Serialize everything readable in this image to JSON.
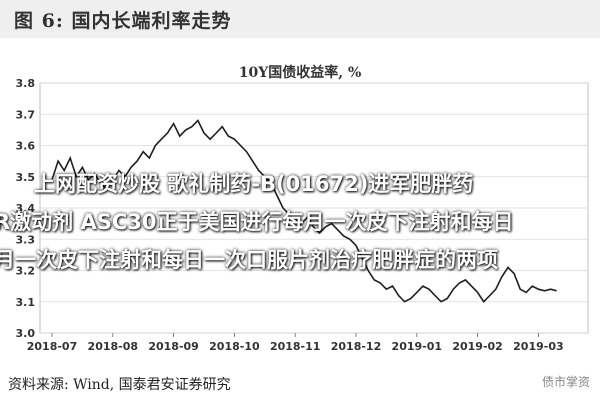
{
  "figure_title": "图 6:  国内长端利率走势",
  "overlay_text": {
    "line1": "上网配资炒股 歌礼制药-B(01672)进军肥胖药",
    "line2": "R激动剂 ASC30正于美国进行每月一次皮下注射和每日",
    "line3": "月一次皮下注射和每日一次口服片剂治疗肥胖症的两项"
  },
  "source_text": "资料来源:  Wind, 国泰君安证券研究",
  "watermark": "债市掌资",
  "chart_data": {
    "type": "line",
    "title": "10Y国债收益率,  %",
    "xlabel": "",
    "ylabel": "",
    "x_ticks": [
      "2018-07",
      "2018-08",
      "2018-09",
      "2018-10",
      "2018-11",
      "2018-12",
      "2019-01",
      "2019-02",
      "2019-03"
    ],
    "y_ticks": [
      "3.0",
      "3.1",
      "3.2",
      "3.3",
      "3.4",
      "3.5",
      "3.6",
      "3.7",
      "3.8"
    ],
    "ylim": [
      3.0,
      3.8
    ],
    "grid": "horizontal",
    "line_color": "#1f1f1f",
    "series": [
      {
        "name": "",
        "x": [
          0,
          0.1,
          0.2,
          0.3,
          0.4,
          0.5,
          0.6,
          0.7,
          0.8,
          0.9,
          1.0,
          1.1,
          1.2,
          1.3,
          1.4,
          1.5,
          1.6,
          1.7,
          1.8,
          1.9,
          2.0,
          2.1,
          2.2,
          2.3,
          2.4,
          2.5,
          2.6,
          2.7,
          2.8,
          2.9,
          3.0,
          3.1,
          3.2,
          3.3,
          3.4,
          3.5,
          3.6,
          3.7,
          3.8,
          3.9,
          4.0,
          4.1,
          4.2,
          4.3,
          4.4,
          4.5,
          4.6,
          4.7,
          4.8,
          4.9,
          5.0,
          5.1,
          5.2,
          5.3,
          5.4,
          5.5,
          5.6,
          5.7,
          5.8,
          5.9,
          6.0,
          6.1,
          6.2,
          6.3,
          6.4,
          6.5,
          6.6,
          6.7,
          6.8,
          6.9,
          7.0,
          7.1,
          7.2,
          7.3,
          7.4,
          7.5,
          7.6,
          7.7,
          7.8,
          7.9,
          8.0,
          8.1,
          8.2,
          8.3
        ],
        "y": [
          3.49,
          3.55,
          3.52,
          3.56,
          3.5,
          3.53,
          3.49,
          3.51,
          3.48,
          3.46,
          3.49,
          3.52,
          3.5,
          3.53,
          3.55,
          3.58,
          3.56,
          3.6,
          3.62,
          3.64,
          3.67,
          3.63,
          3.65,
          3.66,
          3.68,
          3.64,
          3.62,
          3.64,
          3.66,
          3.63,
          3.62,
          3.6,
          3.58,
          3.55,
          3.52,
          3.5,
          3.48,
          3.44,
          3.4,
          3.38,
          3.36,
          3.35,
          3.37,
          3.34,
          3.32,
          3.34,
          3.35,
          3.33,
          3.31,
          3.3,
          3.28,
          3.24,
          3.2,
          3.17,
          3.16,
          3.14,
          3.15,
          3.12,
          3.1,
          3.11,
          3.13,
          3.15,
          3.14,
          3.12,
          3.1,
          3.11,
          3.14,
          3.16,
          3.17,
          3.15,
          3.13,
          3.1,
          3.12,
          3.14,
          3.18,
          3.21,
          3.19,
          3.14,
          3.13,
          3.15,
          3.14,
          3.135,
          3.14,
          3.135
        ]
      }
    ]
  }
}
